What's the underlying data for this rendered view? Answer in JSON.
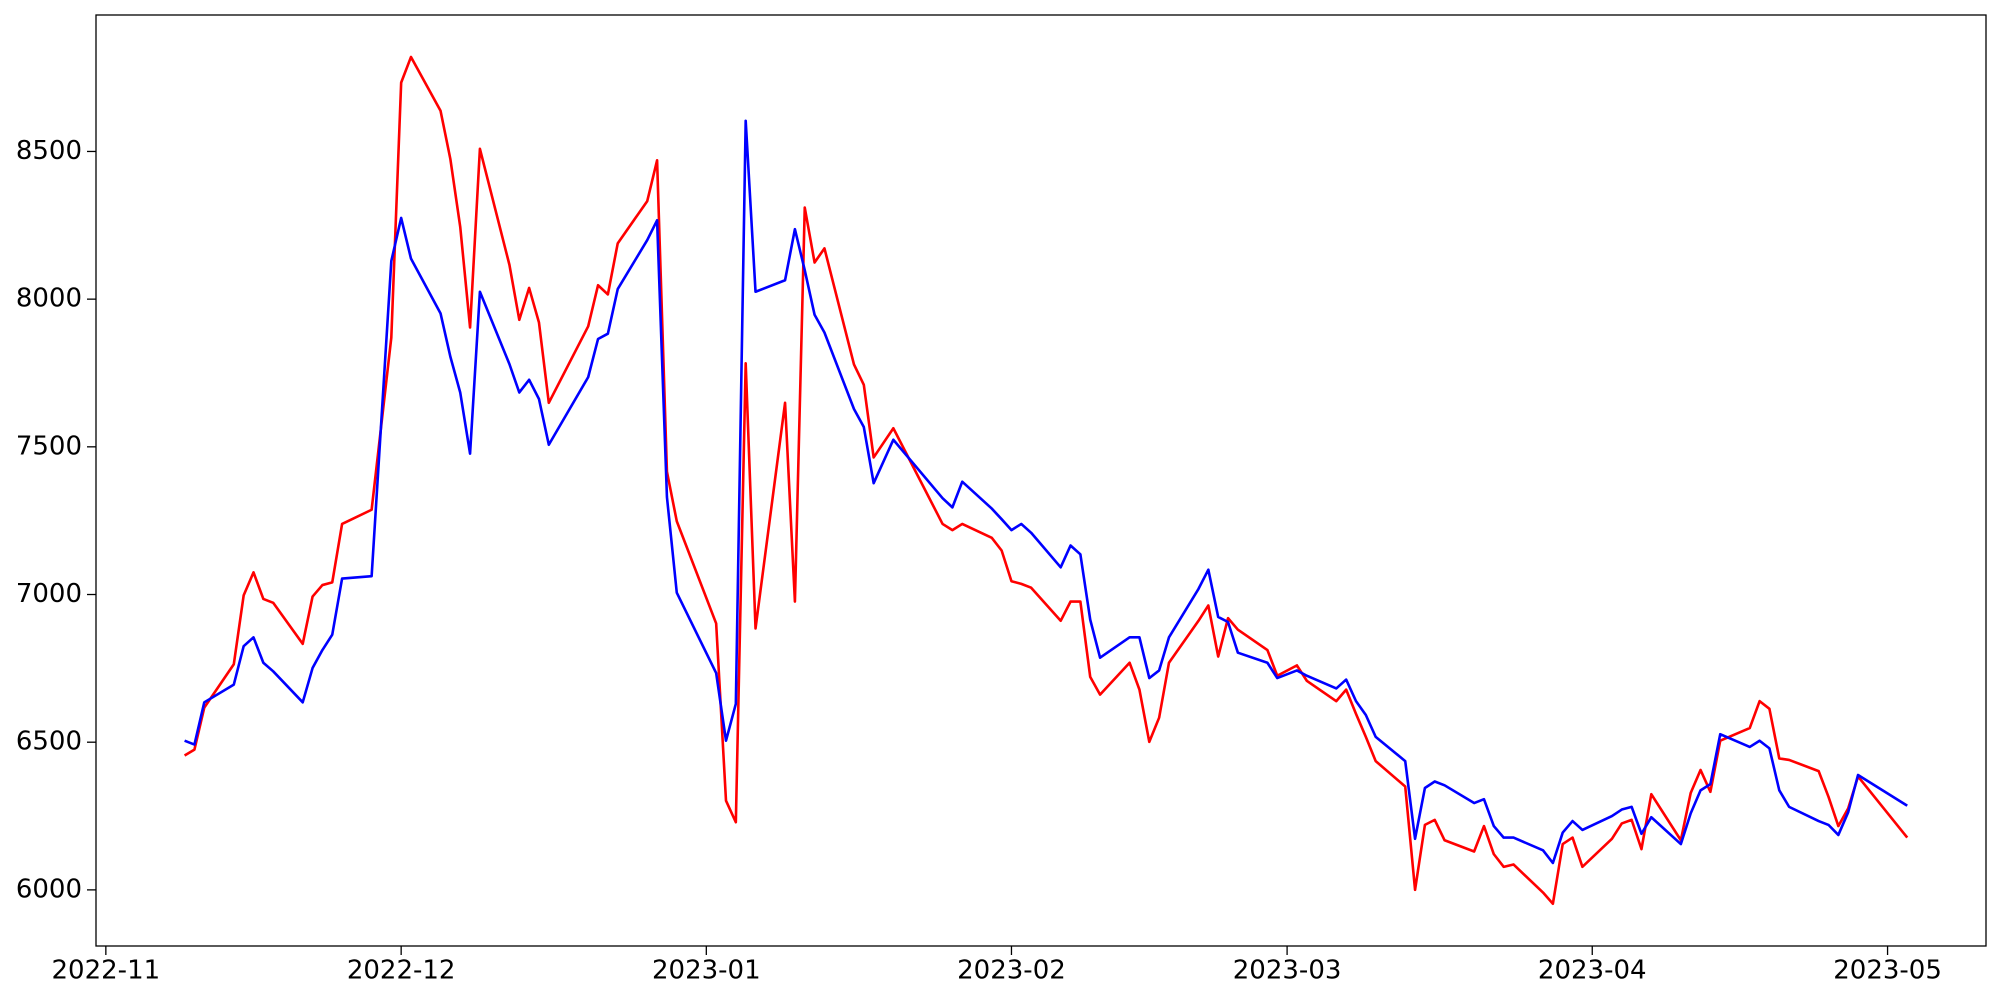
{
  "chart_data": {
    "type": "line",
    "x": [
      "2022-11-09",
      "2022-11-10",
      "2022-11-11",
      "2022-11-14",
      "2022-11-15",
      "2022-11-16",
      "2022-11-17",
      "2022-11-18",
      "2022-11-21",
      "2022-11-22",
      "2022-11-23",
      "2022-11-24",
      "2022-11-25",
      "2022-11-28",
      "2022-11-30",
      "2022-12-01",
      "2022-12-02",
      "2022-12-05",
      "2022-12-06",
      "2022-12-07",
      "2022-12-08",
      "2022-12-09",
      "2022-12-12",
      "2022-12-13",
      "2022-12-14",
      "2022-12-15",
      "2022-12-16",
      "2022-12-20",
      "2022-12-21",
      "2022-12-22",
      "2022-12-23",
      "2022-12-26",
      "2022-12-27",
      "2022-12-28",
      "2022-12-29",
      "2023-01-02",
      "2023-01-03",
      "2023-01-04",
      "2023-01-05",
      "2023-01-06",
      "2023-01-09",
      "2023-01-10",
      "2023-01-11",
      "2023-01-12",
      "2023-01-13",
      "2023-01-16",
      "2023-01-17",
      "2023-01-18",
      "2023-01-20",
      "2023-01-25",
      "2023-01-26",
      "2023-01-27",
      "2023-01-30",
      "2023-01-31",
      "2023-02-01",
      "2023-02-02",
      "2023-02-03",
      "2023-02-06",
      "2023-02-07",
      "2023-02-08",
      "2023-02-09",
      "2023-02-10",
      "2023-02-13",
      "2023-02-14",
      "2023-02-15",
      "2023-02-16",
      "2023-02-17",
      "2023-02-20",
      "2023-02-21",
      "2023-02-22",
      "2023-02-23",
      "2023-02-24",
      "2023-02-27",
      "2023-02-28",
      "2023-03-02",
      "2023-03-03",
      "2023-03-06",
      "2023-03-07",
      "2023-03-08",
      "2023-03-09",
      "2023-03-10",
      "2023-03-13",
      "2023-03-14",
      "2023-03-15",
      "2023-03-16",
      "2023-03-17",
      "2023-03-20",
      "2023-03-21",
      "2023-03-22",
      "2023-03-23",
      "2023-03-24",
      "2023-03-27",
      "2023-03-28",
      "2023-03-29",
      "2023-03-30",
      "2023-03-31",
      "2023-04-03",
      "2023-04-04",
      "2023-04-05",
      "2023-04-06",
      "2023-04-07",
      "2023-04-10",
      "2023-04-11",
      "2023-04-12",
      "2023-04-13",
      "2023-04-14",
      "2023-04-17",
      "2023-04-18",
      "2023-04-19",
      "2023-04-20",
      "2023-04-21",
      "2023-04-24",
      "2023-04-25",
      "2023-04-26",
      "2023-04-27",
      "2023-04-28",
      "2023-05-03"
    ],
    "series": [
      {
        "color": "#ff0000",
        "values": [
          6455,
          6475,
          6617,
          6764,
          6997,
          7075,
          6985,
          6972,
          6833,
          6993,
          7032,
          7041,
          7239,
          7287,
          7870,
          8733,
          8820,
          8638,
          8474,
          8245,
          7904,
          8509,
          8116,
          7930,
          8038,
          7921,
          7649,
          7908,
          8047,
          8016,
          8189,
          8332,
          8470,
          7416,
          7248,
          6902,
          6302,
          6229,
          7783,
          6885,
          7649,
          6976,
          8310,
          8124,
          8172,
          7779,
          7710,
          7464,
          7563,
          7239,
          7218,
          7239,
          7192,
          7149,
          7045,
          7036,
          7023,
          6911,
          6976,
          6976,
          6721,
          6661,
          6769,
          6678,
          6501,
          6583,
          6769,
          6911,
          6963,
          6790,
          6920,
          6881,
          6812,
          6725,
          6760,
          6708,
          6639,
          6678,
          6596,
          6518,
          6436,
          6350,
          6000,
          6220,
          6237,
          6168,
          6130,
          6216,
          6121,
          6078,
          6086,
          5991,
          5953,
          6155,
          6177,
          6078,
          6173,
          6225,
          6237,
          6138,
          6324,
          6168,
          6328,
          6406,
          6332,
          6505,
          6548,
          6639,
          6613,
          6445,
          6440,
          6402,
          6315,
          6216,
          6276,
          6384,
          6177
        ]
      },
      {
        "color": "#0000ff",
        "values": [
          6505,
          6492,
          6635,
          6695,
          6825,
          6855,
          6769,
          6740,
          6635,
          6751,
          6812,
          6864,
          7054,
          7062,
          8129,
          8275,
          8137,
          7952,
          7805,
          7684,
          7477,
          8025,
          7780,
          7684,
          7727,
          7662,
          7507,
          7736,
          7865,
          7883,
          8034,
          8200,
          8267,
          7330,
          7006,
          6734,
          6505,
          6630,
          8604,
          8025,
          8064,
          8237,
          8098,
          7947,
          7887,
          7628,
          7567,
          7377,
          7524,
          7326,
          7295,
          7382,
          7291,
          7255,
          7218,
          7239,
          7209,
          7092,
          7166,
          7136,
          6915,
          6786,
          6855,
          6855,
          6717,
          6743,
          6855,
          7019,
          7084,
          6924,
          6907,
          6803,
          6769,
          6717,
          6743,
          6725,
          6682,
          6712,
          6639,
          6592,
          6518,
          6436,
          6173,
          6345,
          6367,
          6354,
          6294,
          6307,
          6216,
          6177,
          6177,
          6134,
          6091,
          6194,
          6233,
          6203,
          6250,
          6272,
          6281,
          6190,
          6246,
          6155,
          6259,
          6337,
          6358,
          6527,
          6484,
          6505,
          6479,
          6337,
          6281,
          6233,
          6220,
          6186,
          6263,
          6389,
          6285
        ]
      }
    ],
    "xlim": [
      "2022-10-31",
      "2023-05-11"
    ],
    "xticks": [
      "2022-11",
      "2022-12",
      "2023-01",
      "2023-02",
      "2023-03",
      "2023-04",
      "2023-05"
    ],
    "ylim": [
      5810,
      8962
    ],
    "yticks": [
      6000,
      6500,
      7000,
      7500,
      8000,
      8500
    ],
    "grid": false
  }
}
